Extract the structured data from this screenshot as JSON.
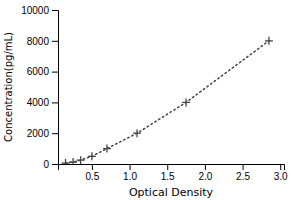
{
  "chart_data": {
    "type": "line",
    "x": [
      0.15,
      0.25,
      0.35,
      0.5,
      0.7,
      1.1,
      1.75,
      2.85
    ],
    "series": [
      {
        "color": "#444444",
        "marker": "+",
        "line_style": "dotted",
        "values": [
          62.5,
          125,
          250,
          500,
          1000,
          2000,
          4000,
          8000
        ]
      }
    ],
    "xlabel": "Optical Density",
    "ylabel": "Concentration(pg/mL)",
    "xlim": [
      0.05,
      3.05
    ],
    "ylim": [
      0,
      10000
    ],
    "xticks": [
      0.5,
      {
        "value": 1,
        "label": "1.0"
      },
      1.5,
      {
        "value": 2,
        "label": "2.0"
      },
      2.5,
      {
        "value": 3,
        "label": "3.0"
      }
    ],
    "yticks": [
      0,
      2000,
      4000,
      6000,
      8000,
      10000
    ]
  }
}
